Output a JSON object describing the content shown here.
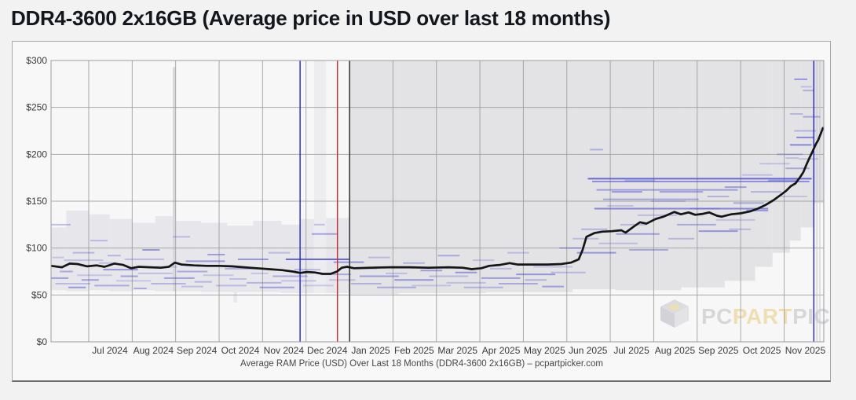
{
  "page": {
    "title": "DDR4-3600 2x16GB (Average price in USD over last 18 months)"
  },
  "watermark": {
    "pc": "PC",
    "part": "PART",
    "picker": "PICKER"
  },
  "colors": {
    "page_bg": "#f2f2f3",
    "card_bg": "#f8f8f9",
    "card_border": "#a8a8a8",
    "plot_bg": "#f7f7f8",
    "plot_border": "#9e9ea2",
    "grid": "#9b9b9b",
    "grid_faint": "#c6c6ca",
    "band_2024": "#e7e7eb",
    "band_full": "#e3e3e6",
    "band_spike": "#d9d9dd",
    "band_light": "#ededf0",
    "listing_blue": "#4a4ad0",
    "average_line": "#151515",
    "vline_blue": "#2222d2",
    "vline_red": "#cc2a2a",
    "vline_dark": "#3c3c3c",
    "axis_text": "#3a3a3a",
    "caption_text": "#474747",
    "watermark_gray": "#d7d7da",
    "watermark_yellow": "#eedfb2"
  },
  "chart_data": {
    "type": "line",
    "title": "DDR4-3600 2x16GB (Average price in USD over last 18 months)",
    "caption": "Average RAM Price (USD) Over Last 18 Months (DDR4-3600 2x16GB) – pcpartpicker.com",
    "unit": "USD",
    "ylim": [
      0,
      300
    ],
    "yticks": [
      0,
      50,
      100,
      150,
      200,
      250,
      300
    ],
    "ytick_prefix": "$",
    "grid": true,
    "x_months": [
      "Jul 2024",
      "Aug 2024",
      "Sep 2024",
      "Oct 2024",
      "Nov 2024",
      "Dec 2024",
      "Jan 2025",
      "Feb 2025",
      "Mar 2025",
      "Apr 2025",
      "May 2025",
      "Jun 2025",
      "Jul 2025",
      "Aug 2025",
      "Sep 2025",
      "Oct 2025",
      "Nov 2025"
    ],
    "timeline": {
      "note": "t is months since chart start (early Jun 2024); month boundaries at t = 0.867 + k",
      "first_boundary_t": 0.867,
      "end_t": 17.78
    },
    "average_series": [
      [
        0.0,
        81
      ],
      [
        0.25,
        79.5
      ],
      [
        0.43,
        83.5
      ],
      [
        0.61,
        83
      ],
      [
        0.83,
        80.5
      ],
      [
        1.05,
        81.5
      ],
      [
        1.23,
        80
      ],
      [
        1.46,
        83.5
      ],
      [
        1.66,
        82
      ],
      [
        1.84,
        78.5
      ],
      [
        2.02,
        80
      ],
      [
        2.28,
        79.5
      ],
      [
        2.53,
        79
      ],
      [
        2.71,
        80
      ],
      [
        2.85,
        84.5
      ],
      [
        3.0,
        82.5
      ],
      [
        3.29,
        81.5
      ],
      [
        3.58,
        81
      ],
      [
        3.87,
        81
      ],
      [
        4.16,
        80.5
      ],
      [
        4.44,
        79.5
      ],
      [
        4.73,
        78.5
      ],
      [
        5.02,
        77.5
      ],
      [
        5.31,
        76.5
      ],
      [
        5.56,
        75
      ],
      [
        5.73,
        73.5
      ],
      [
        5.89,
        74.5
      ],
      [
        6.07,
        74
      ],
      [
        6.25,
        72.5
      ],
      [
        6.43,
        72.5
      ],
      [
        6.58,
        75
      ],
      [
        6.69,
        79
      ],
      [
        6.81,
        80
      ],
      [
        6.97,
        78.5
      ],
      [
        7.33,
        79
      ],
      [
        7.79,
        79.5
      ],
      [
        8.24,
        79.5
      ],
      [
        8.69,
        79
      ],
      [
        9.14,
        79.5
      ],
      [
        9.47,
        79
      ],
      [
        9.68,
        77.5
      ],
      [
        9.9,
        78.5
      ],
      [
        10.08,
        81
      ],
      [
        10.33,
        82
      ],
      [
        10.55,
        84
      ],
      [
        10.73,
        82.5
      ],
      [
        11.06,
        82.5
      ],
      [
        11.42,
        82.5
      ],
      [
        11.74,
        83
      ],
      [
        11.96,
        84.5
      ],
      [
        12.14,
        88
      ],
      [
        12.23,
        98
      ],
      [
        12.32,
        112
      ],
      [
        12.5,
        116
      ],
      [
        12.68,
        117.5
      ],
      [
        12.9,
        118
      ],
      [
        13.12,
        119
      ],
      [
        13.22,
        116.5
      ],
      [
        13.41,
        123
      ],
      [
        13.55,
        127.5
      ],
      [
        13.7,
        126
      ],
      [
        13.91,
        131
      ],
      [
        14.09,
        133.5
      ],
      [
        14.24,
        136.5
      ],
      [
        14.34,
        138.5
      ],
      [
        14.49,
        136
      ],
      [
        14.67,
        138
      ],
      [
        14.82,
        135.5
      ],
      [
        15.0,
        136.5
      ],
      [
        15.14,
        138
      ],
      [
        15.32,
        134.5
      ],
      [
        15.43,
        133.5
      ],
      [
        15.65,
        136
      ],
      [
        15.86,
        137
      ],
      [
        16.08,
        139
      ],
      [
        16.26,
        142
      ],
      [
        16.44,
        146
      ],
      [
        16.62,
        151
      ],
      [
        16.77,
        156
      ],
      [
        16.91,
        161
      ],
      [
        17.02,
        166
      ],
      [
        17.13,
        169
      ],
      [
        17.24,
        176
      ],
      [
        17.31,
        181
      ],
      [
        17.38,
        189
      ],
      [
        17.45,
        196
      ],
      [
        17.53,
        204
      ],
      [
        17.6,
        211
      ],
      [
        17.65,
        215
      ],
      [
        17.71,
        222
      ],
      [
        17.76,
        228
      ]
    ],
    "range_band": [
      [
        0.0,
        0.35,
        55,
        122,
        "b"
      ],
      [
        0.35,
        0.87,
        54,
        140,
        "b"
      ],
      [
        0.87,
        1.35,
        55,
        136,
        "b"
      ],
      [
        1.35,
        1.87,
        54,
        131,
        "b"
      ],
      [
        1.87,
        2.4,
        55,
        127,
        "b"
      ],
      [
        2.4,
        2.8,
        54,
        134,
        "b"
      ],
      [
        2.8,
        2.86,
        54,
        293,
        "s"
      ],
      [
        2.86,
        3.45,
        54,
        129,
        "b"
      ],
      [
        3.45,
        4.05,
        53,
        127,
        "b"
      ],
      [
        4.05,
        4.65,
        53,
        124,
        "b"
      ],
      [
        4.2,
        4.28,
        42,
        55,
        "b"
      ],
      [
        4.65,
        5.3,
        53,
        129,
        "b"
      ],
      [
        5.3,
        5.73,
        52,
        125,
        "b"
      ],
      [
        5.73,
        6.05,
        52,
        131,
        "b"
      ],
      [
        6.05,
        6.33,
        52,
        300,
        "l"
      ],
      [
        6.33,
        6.87,
        52,
        132,
        "b"
      ],
      [
        6.87,
        8.0,
        51,
        310,
        "f"
      ],
      [
        8.0,
        10.0,
        52,
        310,
        "f"
      ],
      [
        10.0,
        12.0,
        53,
        310,
        "f"
      ],
      [
        12.0,
        13.0,
        56,
        310,
        "f"
      ],
      [
        13.0,
        14.5,
        55,
        310,
        "f"
      ],
      [
        14.5,
        15.5,
        58,
        310,
        "f"
      ],
      [
        15.5,
        16.2,
        65,
        310,
        "f"
      ],
      [
        16.2,
        16.6,
        80,
        310,
        "f"
      ],
      [
        16.6,
        17.0,
        95,
        310,
        "f"
      ],
      [
        17.0,
        17.25,
        108,
        310,
        "f"
      ],
      [
        17.25,
        17.55,
        122,
        310,
        "f"
      ],
      [
        17.55,
        17.78,
        148,
        310,
        "f"
      ]
    ],
    "listings": [
      [
        0.0,
        0.45,
        125
      ],
      [
        0.03,
        0.3,
        90
      ],
      [
        0.0,
        0.4,
        68
      ],
      [
        0.1,
        0.9,
        62
      ],
      [
        0.2,
        0.5,
        75
      ],
      [
        0.3,
        1.2,
        87
      ],
      [
        0.4,
        0.8,
        58
      ],
      [
        0.5,
        1.0,
        95
      ],
      [
        0.6,
        1.4,
        71
      ],
      [
        0.7,
        1.1,
        66
      ],
      [
        0.9,
        1.3,
        108
      ],
      [
        1.0,
        1.8,
        60
      ],
      [
        1.1,
        1.5,
        84
      ],
      [
        1.2,
        2.0,
        77
      ],
      [
        1.3,
        1.6,
        92
      ],
      [
        1.5,
        2.3,
        65
      ],
      [
        1.6,
        2.0,
        70
      ],
      [
        1.7,
        2.6,
        88
      ],
      [
        1.9,
        2.2,
        57
      ],
      [
        2.0,
        2.8,
        73
      ],
      [
        2.1,
        2.5,
        98
      ],
      [
        2.3,
        3.1,
        62
      ],
      [
        2.4,
        2.9,
        80
      ],
      [
        2.6,
        3.3,
        68
      ],
      [
        2.8,
        3.2,
        112
      ],
      [
        2.9,
        3.6,
        75
      ],
      [
        3.0,
        3.5,
        59
      ],
      [
        3.1,
        4.0,
        86
      ],
      [
        3.3,
        3.7,
        64
      ],
      [
        3.5,
        4.2,
        71
      ],
      [
        3.6,
        4.0,
        93
      ],
      [
        3.8,
        4.5,
        60
      ],
      [
        4.0,
        4.8,
        78
      ],
      [
        4.1,
        4.5,
        67
      ],
      [
        4.3,
        5.0,
        88
      ],
      [
        4.5,
        5.3,
        63
      ],
      [
        4.6,
        5.0,
        73
      ],
      [
        4.8,
        5.6,
        58
      ],
      [
        5.0,
        5.5,
        95
      ],
      [
        5.1,
        5.9,
        70
      ],
      [
        5.3,
        6.1,
        65
      ],
      [
        5.4,
        6.87,
        88,
        0.8
      ],
      [
        5.6,
        6.2,
        77
      ],
      [
        5.8,
        6.5,
        60
      ],
      [
        6.0,
        6.6,
        115
      ],
      [
        6.05,
        6.3,
        125
      ],
      [
        6.2,
        6.9,
        72
      ],
      [
        6.4,
        7.0,
        66
      ],
      [
        6.5,
        7.2,
        85
      ],
      [
        6.9,
        7.6,
        62
      ],
      [
        7.0,
        7.5,
        78
      ],
      [
        7.1,
        8.0,
        70
      ],
      [
        7.3,
        7.8,
        90
      ],
      [
        7.5,
        8.4,
        58
      ],
      [
        7.7,
        8.2,
        73
      ],
      [
        7.9,
        8.8,
        66
      ],
      [
        8.1,
        8.6,
        84
      ],
      [
        8.3,
        9.2,
        60
      ],
      [
        8.5,
        9.0,
        76
      ],
      [
        8.7,
        9.6,
        70
      ],
      [
        8.9,
        9.4,
        92
      ],
      [
        9.1,
        10.0,
        63
      ],
      [
        9.3,
        9.8,
        74
      ],
      [
        9.5,
        10.4,
        58
      ],
      [
        9.7,
        10.2,
        87
      ],
      [
        9.9,
        10.8,
        68
      ],
      [
        10.1,
        10.6,
        78
      ],
      [
        10.3,
        11.2,
        62
      ],
      [
        10.5,
        11.0,
        95
      ],
      [
        10.7,
        11.6,
        72
      ],
      [
        10.9,
        11.4,
        66
      ],
      [
        11.1,
        12.0,
        80
      ],
      [
        11.3,
        11.8,
        59
      ],
      [
        11.5,
        12.3,
        74
      ],
      [
        11.7,
        12.2,
        100
      ],
      [
        12.0,
        12.6,
        110
      ],
      [
        12.1,
        13.0,
        95
      ],
      [
        12.2,
        12.8,
        120
      ],
      [
        12.35,
        17.5,
        174,
        0.8
      ],
      [
        12.45,
        17.45,
        171,
        0.55
      ],
      [
        12.5,
        16.5,
        142,
        0.6
      ],
      [
        12.55,
        15.8,
        162,
        0.45
      ],
      [
        12.6,
        13.5,
        105
      ],
      [
        12.4,
        12.7,
        205,
        0.35
      ],
      [
        12.7,
        14.9,
        152,
        0.4
      ],
      [
        12.8,
        13.4,
        145
      ],
      [
        13.0,
        14.0,
        115
      ],
      [
        13.1,
        13.7,
        125
      ],
      [
        13.3,
        14.2,
        98
      ],
      [
        13.5,
        14.4,
        135
      ],
      [
        12.9,
        13.6,
        160
      ],
      [
        13.2,
        13.9,
        172
      ],
      [
        13.8,
        14.6,
        150
      ],
      [
        14.0,
        15.0,
        160
      ],
      [
        14.2,
        14.8,
        110
      ],
      [
        14.4,
        15.3,
        125
      ],
      [
        14.7,
        15.4,
        142
      ],
      [
        14.9,
        15.8,
        118
      ],
      [
        15.1,
        15.6,
        155
      ],
      [
        15.3,
        16.2,
        130
      ],
      [
        15.5,
        16.0,
        165
      ],
      [
        15.6,
        16.1,
        120
      ],
      [
        15.7,
        16.4,
        148
      ],
      [
        15.9,
        16.6,
        178
      ],
      [
        16.0,
        16.5,
        140
      ],
      [
        16.1,
        16.8,
        160
      ],
      [
        16.3,
        17.0,
        190
      ],
      [
        16.5,
        17.2,
        172
      ],
      [
        16.7,
        17.3,
        200
      ],
      [
        16.9,
        17.45,
        185
      ],
      [
        16.9,
        17.2,
        196
      ],
      [
        17.0,
        17.5,
        210,
        0.6
      ],
      [
        17.1,
        17.6,
        225
      ],
      [
        17.2,
        17.65,
        195
      ],
      [
        17.15,
        17.55,
        218,
        0.6
      ],
      [
        17.0,
        17.3,
        243
      ],
      [
        17.3,
        17.7,
        240
      ],
      [
        17.25,
        17.5,
        272
      ],
      [
        17.1,
        17.4,
        280
      ],
      [
        17.3,
        17.55,
        268
      ],
      [
        16.8,
        17.4,
        155
      ]
    ],
    "event_lines": [
      {
        "t": 5.73,
        "color": "blue"
      },
      {
        "t": 6.59,
        "color": "red"
      },
      {
        "t": 6.87,
        "color": "dark"
      },
      {
        "t": 17.55,
        "color": "blue"
      }
    ],
    "faint_lines": [
      17.62,
      17.69
    ],
    "legend_position": "none"
  }
}
